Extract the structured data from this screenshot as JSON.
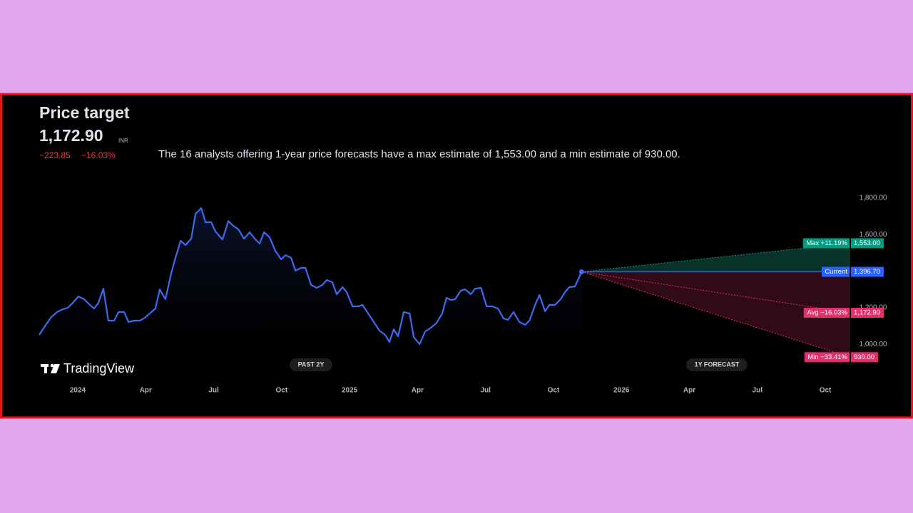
{
  "header": {
    "title": "Price target",
    "price": "1,172.90",
    "currency": "INR",
    "change": "−223.85",
    "change_pct": "−16.03%",
    "description": "The 16 analysts offering 1-year price forecasts have a max estimate of 1,553.00 and a min estimate of 930.00.",
    "brand": "TradingView",
    "past_label": "PAST 2Y",
    "forecast_label": "1Y FORECAST"
  },
  "chart_data": {
    "type": "line",
    "x": [
      -1.7,
      -1.39,
      -1.17,
      -0.91,
      -0.66,
      -0.44,
      -0.22,
      0.03,
      0.28,
      0.5,
      0.72,
      0.91,
      1.13,
      1.35,
      1.61,
      1.8,
      2.05,
      2.24,
      2.49,
      2.74,
      2.96,
      3.18,
      3.43,
      3.62,
      3.87,
      4.13,
      4.31,
      4.54,
      4.76,
      5.01,
      5.2,
      5.45,
      5.64,
      5.89,
      6.08,
      6.39,
      6.65,
      6.83,
      7.09,
      7.34,
      7.59,
      7.84,
      8.03,
      8.22,
      8.47,
      8.72,
      8.98,
      9.17,
      9.42,
      9.61,
      9.86,
      10.05,
      10.3,
      10.55,
      10.8,
      10.99,
      11.24,
      11.43,
      11.69,
      11.87,
      12.13,
      12.38,
      12.57,
      12.82,
      13.07,
      13.32,
      13.57,
      13.76,
      13.95,
      14.14,
      14.39,
      14.65,
      14.83,
      15.09,
      15.34,
      15.59,
      15.84,
      16.09,
      16.28,
      16.47,
      16.66,
      16.91,
      17.1,
      17.35,
      17.54,
      17.8,
      18.05,
      18.3,
      18.55,
      18.8,
      18.99,
      19.24,
      19.5,
      19.75,
      19.94,
      20.19,
      20.38,
      20.63,
      20.82,
      21.07,
      21.32,
      21.51,
      21.7,
      21.95,
      22.24
    ],
    "series": [
      {
        "color": "#3d6af0",
        "values": [
          1052,
          1110,
          1149,
          1177,
          1192,
          1200,
          1227,
          1262,
          1247,
          1220,
          1196,
          1227,
          1305,
          1130,
          1130,
          1177,
          1177,
          1122,
          1130,
          1130,
          1145,
          1169,
          1196,
          1301,
          1247,
          1391,
          1473,
          1566,
          1543,
          1578,
          1714,
          1745,
          1668,
          1668,
          1617,
          1574,
          1675,
          1652,
          1629,
          1578,
          1613,
          1574,
          1551,
          1613,
          1586,
          1512,
          1465,
          1488,
          1473,
          1403,
          1418,
          1418,
          1325,
          1309,
          1325,
          1352,
          1340,
          1274,
          1313,
          1286,
          1208,
          1208,
          1216,
          1169,
          1122,
          1075,
          1052,
          1013,
          1083,
          1044,
          1177,
          1169,
          1040,
          1001,
          1071,
          1091,
          1118,
          1169,
          1255,
          1243,
          1247,
          1294,
          1301,
          1274,
          1305,
          1309,
          1208,
          1208,
          1196,
          1142,
          1134,
          1177,
          1122,
          1107,
          1130,
          1216,
          1270,
          1181,
          1216,
          1216,
          1247,
          1286,
          1313,
          1317,
          1396.7
        ]
      }
    ],
    "current": {
      "name": "Current",
      "value": 1396.7,
      "value_label": "1,396.70",
      "color": "#2962ff"
    },
    "forecast": [
      {
        "name": "Max +11.19%",
        "value": 1553,
        "value_label": "1,553.00",
        "color": "#089981"
      },
      {
        "name": "Avg −16.03%",
        "value": 1172.9,
        "value_label": "1,172.90",
        "color": "#e0316d"
      },
      {
        "name": "Min −33.41%",
        "value": 930,
        "value_label": "930.00",
        "color": "#e0316d"
      }
    ],
    "xlim": [
      -1.7,
      34.1
    ],
    "xticks": [
      {
        "value": 0,
        "label": "2024"
      },
      {
        "value": 3,
        "label": "Apr"
      },
      {
        "value": 6,
        "label": "Jul"
      },
      {
        "value": 9,
        "label": "Oct"
      },
      {
        "value": 12,
        "label": "2025"
      },
      {
        "value": 15,
        "label": "Apr"
      },
      {
        "value": 18,
        "label": "Jul"
      },
      {
        "value": 21,
        "label": "Oct"
      },
      {
        "value": 24,
        "label": "2026"
      },
      {
        "value": 27,
        "label": "Apr"
      },
      {
        "value": 30,
        "label": "Jul"
      },
      {
        "value": 33,
        "label": "Oct"
      }
    ],
    "ylim": [
      830,
      1840
    ],
    "yticks": [
      {
        "value": 1000,
        "label": "1,000.00"
      },
      {
        "value": 1200,
        "label": "1,200.00"
      },
      {
        "value": 1600,
        "label": "1,600.00"
      },
      {
        "value": 1800,
        "label": "1,800.00"
      }
    ]
  }
}
